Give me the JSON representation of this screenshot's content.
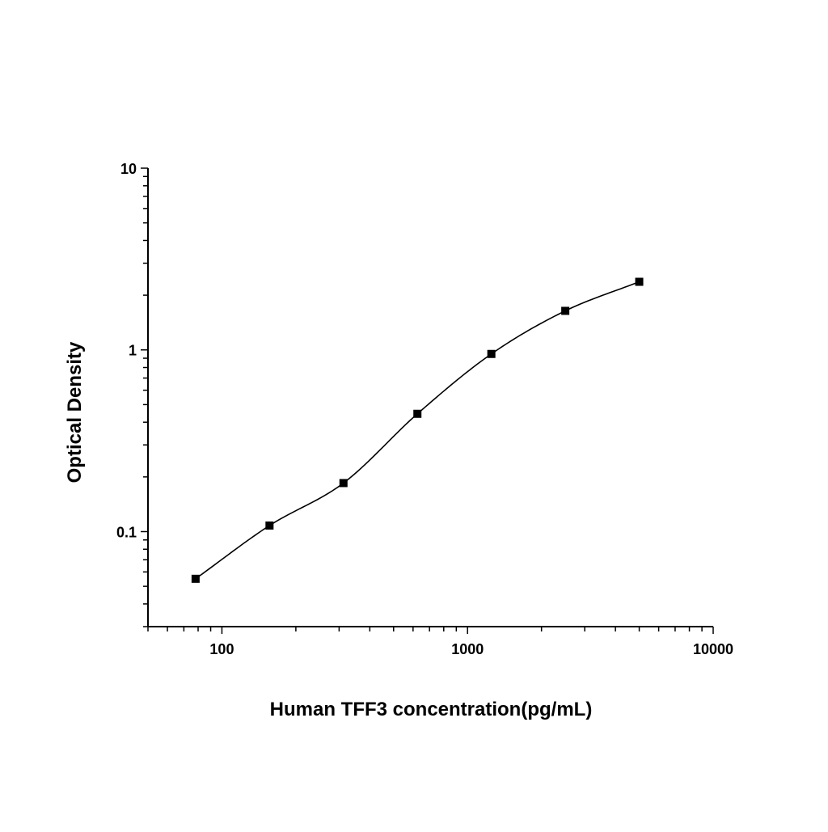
{
  "chart_data": {
    "type": "scatter",
    "xlabel": "Human TFF3 concentration(pg/mL)",
    "ylabel": "Optical Density",
    "xscale": "log",
    "yscale": "log",
    "xlim": [
      50,
      10000
    ],
    "ylim": [
      0.03,
      10
    ],
    "x_tick_labels": [
      "100",
      "1000",
      "10000"
    ],
    "y_tick_labels": [
      "0.1",
      "1",
      "10"
    ],
    "grid": false,
    "legend": "none",
    "series": [
      {
        "x": [
          78.125,
          156.25,
          312.5,
          625,
          1250,
          2500,
          5000
        ],
        "y": [
          0.055,
          0.108,
          0.185,
          0.445,
          0.95,
          1.64,
          2.37
        ],
        "marker": "square",
        "fit_curve": "four-parameter logistic"
      }
    ],
    "colors": {
      "marker": "#000000",
      "curve": "#000000",
      "axis": "#000000"
    }
  }
}
